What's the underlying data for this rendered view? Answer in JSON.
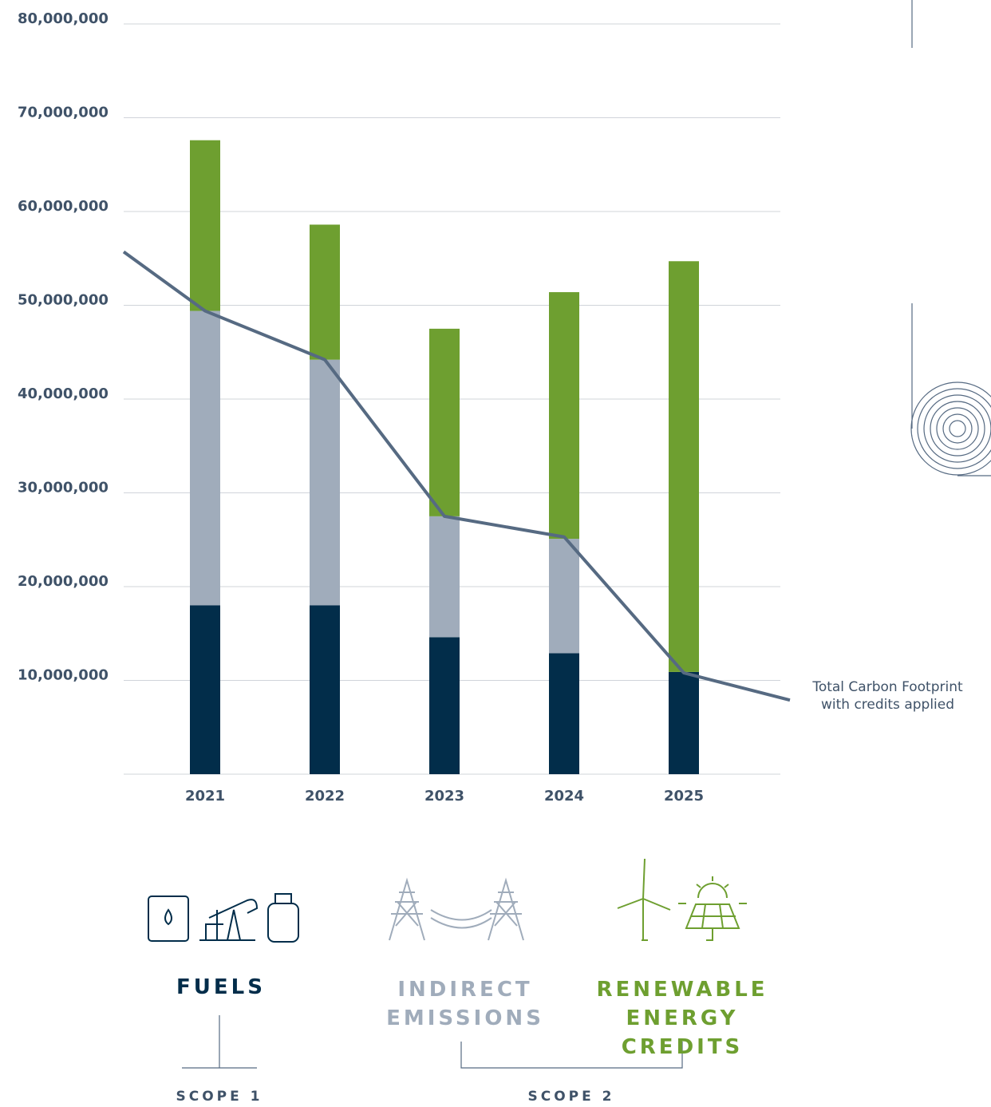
{
  "chart_data": {
    "type": "bar",
    "stacked": true,
    "categories": [
      null,
      "2021",
      "2022",
      "2023",
      "2024",
      "2025",
      null
    ],
    "ylim": [
      0,
      80000000
    ],
    "yticks": [
      {
        "value": 10000000,
        "label": "10,000,000"
      },
      {
        "value": 20000000,
        "label": "20,000,000"
      },
      {
        "value": 30000000,
        "label": "30,000,000"
      },
      {
        "value": 40000000,
        "label": "40,000,000"
      },
      {
        "value": 50000000,
        "label": "50,000,000"
      },
      {
        "value": 60000000,
        "label": "60,000,000"
      },
      {
        "value": 70000000,
        "label": "70,000,000"
      },
      {
        "value": 80000000,
        "label": "80,000,000"
      }
    ],
    "grid": true,
    "series": [
      {
        "name": "FUELS",
        "color": "#022d4a",
        "values": [
          null,
          18000000,
          18000000,
          14600000,
          12900000,
          10900000,
          null
        ]
      },
      {
        "name": "INDIRECT EMISSIONS",
        "color": "#a0acbb",
        "values": [
          null,
          31400000,
          26200000,
          12900000,
          12200000,
          0,
          null
        ]
      },
      {
        "name": "RENEWABLE ENERGY CREDITS",
        "color": "#6e9f30",
        "values": [
          null,
          18200000,
          14400000,
          20000000,
          26300000,
          43800000,
          null
        ]
      },
      {
        "name": "Total Carbon Footprint with credits applied",
        "type": "line",
        "color": "#566a82",
        "values": [
          55700000,
          49400000,
          44200000,
          27500000,
          25300000,
          10800000,
          7900000
        ]
      }
    ],
    "scope_labels": [
      "SCOPE 1",
      "SCOPE 2"
    ]
  }
}
